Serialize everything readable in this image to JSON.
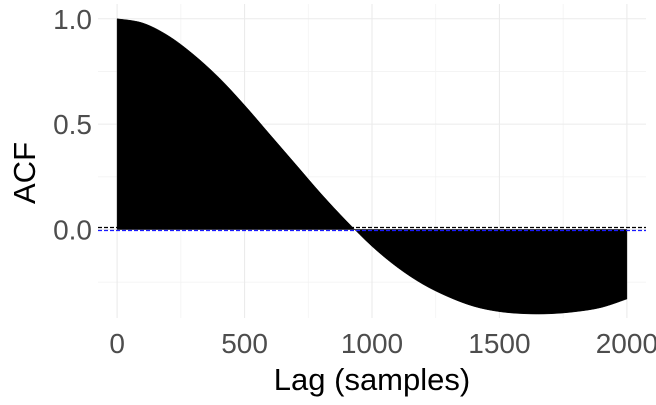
{
  "chart_data": {
    "type": "area",
    "title": "",
    "xlabel": "Lag (samples)",
    "ylabel": "ACF",
    "xlim": [
      -75,
      2075
    ],
    "ylim": [
      -0.42,
      1.07
    ],
    "x_ticks": [
      0,
      500,
      1000,
      1500,
      2000
    ],
    "x_tick_labels": [
      "0",
      "500",
      "1000",
      "1500",
      "2000"
    ],
    "y_ticks": [
      0.0,
      0.5,
      1.0
    ],
    "y_tick_labels": [
      "0.0",
      "0.5",
      "1.0"
    ],
    "grid": true,
    "legend": "none",
    "series": [
      {
        "x": [
          0,
          100,
          200,
          300,
          400,
          500,
          600,
          700,
          800,
          900,
          1000,
          1100,
          1200,
          1300,
          1400,
          1500,
          1600,
          1700,
          1800,
          1900,
          2000
        ],
        "values": [
          1.0,
          0.98,
          0.92,
          0.83,
          0.72,
          0.59,
          0.45,
          0.31,
          0.17,
          0.04,
          -0.08,
          -0.18,
          -0.26,
          -0.32,
          -0.365,
          -0.39,
          -0.4,
          -0.4,
          -0.39,
          -0.37,
          -0.33
        ],
        "fill": "#000000"
      }
    ],
    "reference_lines": [
      {
        "y": 0.0,
        "color": "#000000",
        "style": "dashed"
      },
      {
        "y": 0.0,
        "color": "#1a1aff",
        "style": "dashed"
      }
    ]
  }
}
